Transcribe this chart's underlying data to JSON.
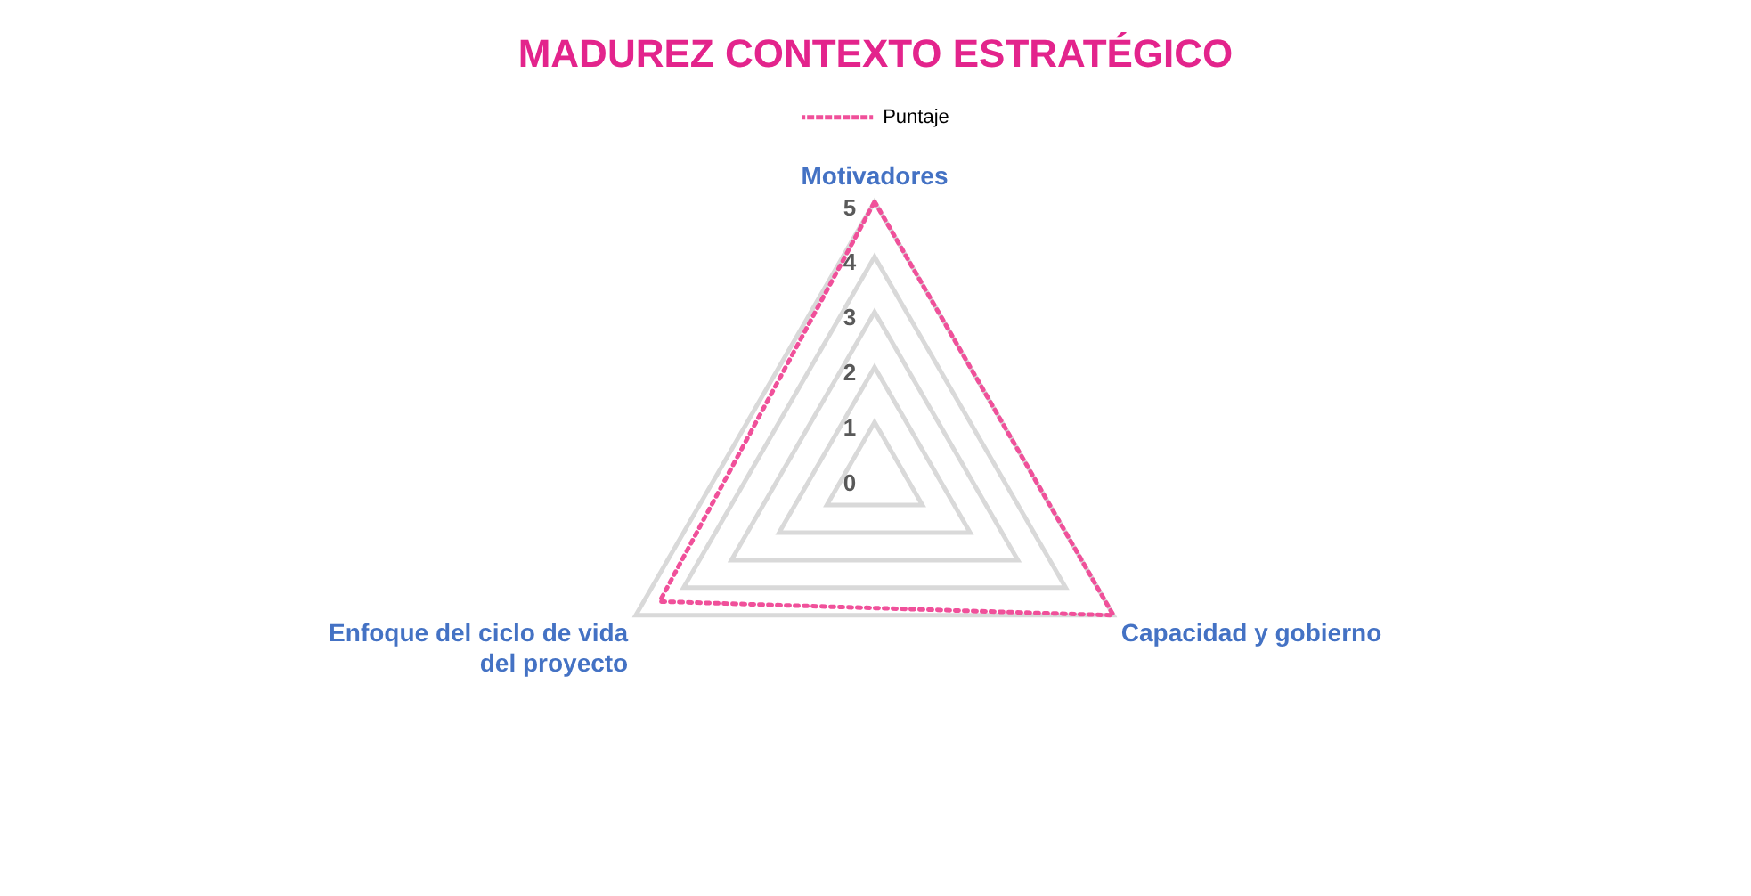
{
  "chart_data": {
    "type": "radar",
    "title": "MADUREZ CONTEXTO ESTRATÉGICO",
    "categories": [
      "Motivadores",
      "Capacidad y gobierno",
      "Enfoque del ciclo de vida del proyecto"
    ],
    "series": [
      {
        "name": "Puntaje",
        "color": "#f0509a",
        "values": [
          5,
          5,
          4.5
        ]
      }
    ],
    "ylim": [
      0,
      5
    ],
    "yticks": [
      0,
      1,
      2,
      3,
      4,
      5
    ],
    "grid": true,
    "legend": "top",
    "marker": "none",
    "line_style": "dotted"
  }
}
